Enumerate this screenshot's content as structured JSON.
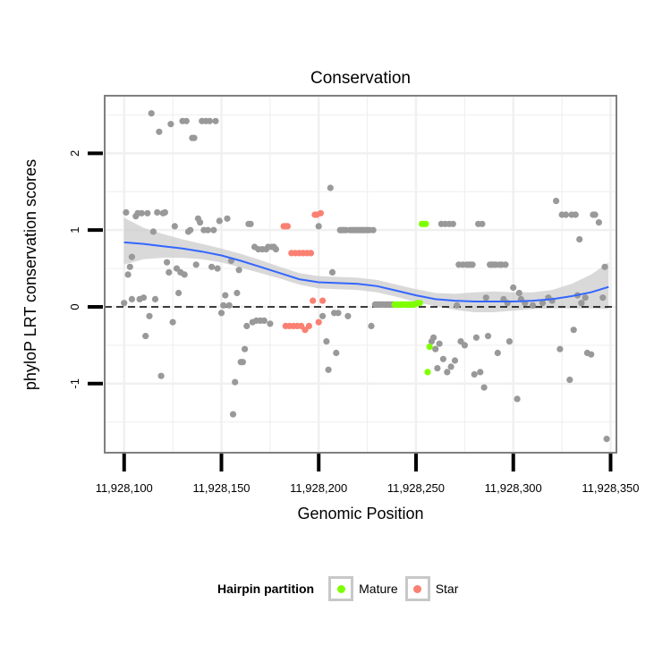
{
  "chart_data": {
    "type": "scatter",
    "title": "Conservation",
    "xlabel": "Genomic Position",
    "ylabel": "phyloP LRT conservation scores",
    "xlim": [
      11928090,
      11928353
    ],
    "ylim": [
      -1.9,
      2.75
    ],
    "x_ticks": [
      11928100,
      11928150,
      11928200,
      11928250,
      11928300,
      11928350
    ],
    "x_tick_labels": [
      "11,928,100",
      "11,928,150",
      "11,928,200",
      "11,928,250",
      "11,928,300",
      "11,928,350"
    ],
    "y_ticks": [
      -1,
      0,
      1,
      2
    ],
    "y_tick_labels": [
      "-1",
      "0",
      "1",
      "2"
    ],
    "reference_line": {
      "y": 0,
      "style": "dashed"
    },
    "colors": {
      "Other": "#999999",
      "Mature": "#7fff00",
      "Star": "#fa8072",
      "smooth": "#3366ff",
      "band": "#cccccc",
      "panel_border": "#7f7f7f",
      "grid": "#f0f0f0"
    },
    "series": [
      {
        "name": "Other",
        "points": [
          [
            11928100,
            0.05
          ],
          [
            11928101,
            1.23
          ],
          [
            11928102,
            0.42
          ],
          [
            11928103,
            0.52
          ],
          [
            11928104,
            0.65
          ],
          [
            11928104,
            0.1
          ],
          [
            11928106,
            1.18
          ],
          [
            11928107,
            1.22
          ],
          [
            11928108,
            0.1
          ],
          [
            11928109,
            1.22
          ],
          [
            11928110,
            0.12
          ],
          [
            11928111,
            -0.38
          ],
          [
            11928112,
            1.22
          ],
          [
            11928113,
            -0.12
          ],
          [
            11928114,
            2.52
          ],
          [
            11928115,
            0.98
          ],
          [
            11928116,
            0.1
          ],
          [
            11928117,
            1.23
          ],
          [
            11928118,
            2.28
          ],
          [
            11928119,
            -0.9
          ],
          [
            11928120,
            1.22
          ],
          [
            11928121,
            1.23
          ],
          [
            11928122,
            0.58
          ],
          [
            11928123,
            0.45
          ],
          [
            11928124,
            2.38
          ],
          [
            11928125,
            -0.2
          ],
          [
            11928126,
            1.05
          ],
          [
            11928127,
            0.5
          ],
          [
            11928128,
            0.18
          ],
          [
            11928129,
            0.45
          ],
          [
            11928130,
            2.42
          ],
          [
            11928131,
            0.42
          ],
          [
            11928132,
            2.42
          ],
          [
            11928133,
            0.98
          ],
          [
            11928134,
            1.0
          ],
          [
            11928135,
            2.2
          ],
          [
            11928136,
            2.2
          ],
          [
            11928137,
            0.55
          ],
          [
            11928138,
            1.15
          ],
          [
            11928139,
            1.1
          ],
          [
            11928140,
            2.42
          ],
          [
            11928141,
            1.0
          ],
          [
            11928142,
            2.42
          ],
          [
            11928143,
            1.0
          ],
          [
            11928144,
            2.42
          ],
          [
            11928145,
            0.52
          ],
          [
            11928146,
            1.0
          ],
          [
            11928147,
            2.42
          ],
          [
            11928148,
            0.5
          ],
          [
            11928149,
            1.12
          ],
          [
            11928150,
            -0.08
          ],
          [
            11928151,
            0.02
          ],
          [
            11928152,
            0.15
          ],
          [
            11928153,
            1.15
          ],
          [
            11928154,
            0.02
          ],
          [
            11928155,
            0.6
          ],
          [
            11928156,
            -1.4
          ],
          [
            11928157,
            -0.98
          ],
          [
            11928158,
            0.18
          ],
          [
            11928159,
            0.48
          ],
          [
            11928160,
            -0.72
          ],
          [
            11928161,
            -0.72
          ],
          [
            11928162,
            -0.55
          ],
          [
            11928163,
            -0.25
          ],
          [
            11928164,
            1.08
          ],
          [
            11928165,
            1.08
          ],
          [
            11928166,
            -0.2
          ],
          [
            11928167,
            0.78
          ],
          [
            11928168,
            -0.18
          ],
          [
            11928169,
            0.75
          ],
          [
            11928170,
            -0.18
          ],
          [
            11928171,
            0.75
          ],
          [
            11928172,
            -0.18
          ],
          [
            11928173,
            0.75
          ],
          [
            11928174,
            0.78
          ],
          [
            11928175,
            -0.22
          ],
          [
            11928176,
            0.78
          ],
          [
            11928177,
            0.78
          ],
          [
            11928178,
            0.75
          ],
          [
            11928200,
            1.05
          ],
          [
            11928202,
            -0.12
          ],
          [
            11928204,
            -0.45
          ],
          [
            11928205,
            -0.82
          ],
          [
            11928206,
            1.55
          ],
          [
            11928207,
            0.45
          ],
          [
            11928208,
            -0.08
          ],
          [
            11928209,
            -0.6
          ],
          [
            11928210,
            -0.08
          ],
          [
            11928211,
            1.0
          ],
          [
            11928212,
            1.0
          ],
          [
            11928213,
            1.0
          ],
          [
            11928214,
            1.0
          ],
          [
            11928215,
            -0.12
          ],
          [
            11928216,
            1.0
          ],
          [
            11928217,
            1.0
          ],
          [
            11928218,
            1.0
          ],
          [
            11928219,
            1.0
          ],
          [
            11928220,
            1.0
          ],
          [
            11928221,
            1.0
          ],
          [
            11928222,
            1.0
          ],
          [
            11928223,
            1.0
          ],
          [
            11928224,
            1.0
          ],
          [
            11928225,
            1.0
          ],
          [
            11928226,
            1.0
          ],
          [
            11928227,
            -0.25
          ],
          [
            11928228,
            1.0
          ],
          [
            11928229,
            0.03
          ],
          [
            11928230,
            0.03
          ],
          [
            11928231,
            0.03
          ],
          [
            11928232,
            0.03
          ],
          [
            11928233,
            0.03
          ],
          [
            11928234,
            0.03
          ],
          [
            11928235,
            0.03
          ],
          [
            11928236,
            0.03
          ],
          [
            11928237,
            0.03
          ],
          [
            11928238,
            0.03
          ],
          [
            11928258,
            -0.45
          ],
          [
            11928259,
            -0.4
          ],
          [
            11928260,
            -0.55
          ],
          [
            11928261,
            -0.8
          ],
          [
            11928262,
            -0.48
          ],
          [
            11928263,
            1.08
          ],
          [
            11928264,
            -0.68
          ],
          [
            11928265,
            1.08
          ],
          [
            11928266,
            -0.85
          ],
          [
            11928267,
            1.08
          ],
          [
            11928268,
            -0.78
          ],
          [
            11928269,
            1.08
          ],
          [
            11928270,
            -0.7
          ],
          [
            11928271,
            0.02
          ],
          [
            11928272,
            0.55
          ],
          [
            11928273,
            -0.45
          ],
          [
            11928274,
            0.55
          ],
          [
            11928275,
            -0.5
          ],
          [
            11928276,
            0.55
          ],
          [
            11928277,
            0.55
          ],
          [
            11928278,
            0.55
          ],
          [
            11928279,
            0.55
          ],
          [
            11928280,
            -0.88
          ],
          [
            11928281,
            -0.4
          ],
          [
            11928282,
            1.08
          ],
          [
            11928283,
            -0.85
          ],
          [
            11928284,
            1.08
          ],
          [
            11928285,
            -1.05
          ],
          [
            11928286,
            0.12
          ],
          [
            11928287,
            -0.38
          ],
          [
            11928288,
            0.55
          ],
          [
            11928289,
            0.55
          ],
          [
            11928290,
            0.55
          ],
          [
            11928291,
            0.55
          ],
          [
            11928292,
            -0.6
          ],
          [
            11928293,
            0.55
          ],
          [
            11928294,
            0.55
          ],
          [
            11928295,
            0.1
          ],
          [
            11928296,
            0.55
          ],
          [
            11928297,
            0.05
          ],
          [
            11928298,
            -0.45
          ],
          [
            11928300,
            0.25
          ],
          [
            11928302,
            -1.2
          ],
          [
            11928303,
            0.18
          ],
          [
            11928304,
            0.1
          ],
          [
            11928306,
            0.05
          ],
          [
            11928310,
            0.02
          ],
          [
            11928315,
            0.05
          ],
          [
            11928318,
            0.12
          ],
          [
            11928320,
            0.08
          ],
          [
            11928322,
            1.38
          ],
          [
            11928324,
            -0.55
          ],
          [
            11928325,
            1.2
          ],
          [
            11928327,
            1.2
          ],
          [
            11928329,
            -0.95
          ],
          [
            11928330,
            1.2
          ],
          [
            11928331,
            -0.3
          ],
          [
            11928332,
            1.2
          ],
          [
            11928333,
            0.15
          ],
          [
            11928334,
            0.88
          ],
          [
            11928335,
            0.05
          ],
          [
            11928337,
            0.12
          ],
          [
            11928338,
            -0.6
          ],
          [
            11928340,
            -0.62
          ],
          [
            11928341,
            1.2
          ],
          [
            11928342,
            1.2
          ],
          [
            11928344,
            1.1
          ],
          [
            11928346,
            0.12
          ],
          [
            11928347,
            0.52
          ],
          [
            11928348,
            -1.72
          ]
        ]
      },
      {
        "name": "Mature",
        "points": [
          [
            11928239,
            0.03
          ],
          [
            11928240,
            0.03
          ],
          [
            11928241,
            0.03
          ],
          [
            11928242,
            0.03
          ],
          [
            11928243,
            0.03
          ],
          [
            11928244,
            0.03
          ],
          [
            11928245,
            0.03
          ],
          [
            11928246,
            0.03
          ],
          [
            11928247,
            0.03
          ],
          [
            11928248,
            0.03
          ],
          [
            11928249,
            0.03
          ],
          [
            11928250,
            0.04
          ],
          [
            11928251,
            0.05
          ],
          [
            11928252,
            0.05
          ],
          [
            11928253,
            1.08
          ],
          [
            11928254,
            1.08
          ],
          [
            11928255,
            1.08
          ],
          [
            11928256,
            -0.85
          ],
          [
            11928257,
            -0.52
          ]
        ]
      },
      {
        "name": "Star",
        "points": [
          [
            11928182,
            1.05
          ],
          [
            11928183,
            1.05
          ],
          [
            11928184,
            1.05
          ],
          [
            11928183,
            -0.25
          ],
          [
            11928185,
            -0.25
          ],
          [
            11928186,
            0.7
          ],
          [
            11928187,
            -0.25
          ],
          [
            11928188,
            0.7
          ],
          [
            11928189,
            -0.25
          ],
          [
            11928190,
            0.7
          ],
          [
            11928191,
            -0.25
          ],
          [
            11928192,
            0.7
          ],
          [
            11928193,
            -0.3
          ],
          [
            11928194,
            0.7
          ],
          [
            11928195,
            -0.25
          ],
          [
            11928196,
            0.7
          ],
          [
            11928197,
            0.08
          ],
          [
            11928198,
            1.2
          ],
          [
            11928199,
            1.2
          ],
          [
            11928200,
            -0.2
          ],
          [
            11928201,
            1.22
          ],
          [
            11928202,
            0.08
          ]
        ]
      }
    ],
    "smooth": {
      "x": [
        11928100,
        11928110,
        11928120,
        11928130,
        11928140,
        11928150,
        11928160,
        11928170,
        11928180,
        11928190,
        11928200,
        11928210,
        11928220,
        11928230,
        11928240,
        11928250,
        11928260,
        11928270,
        11928280,
        11928290,
        11928300,
        11928310,
        11928320,
        11928330,
        11928340,
        11928349
      ],
      "y": [
        0.84,
        0.82,
        0.79,
        0.76,
        0.72,
        0.67,
        0.6,
        0.52,
        0.44,
        0.36,
        0.32,
        0.31,
        0.3,
        0.27,
        0.21,
        0.15,
        0.1,
        0.08,
        0.07,
        0.07,
        0.07,
        0.08,
        0.1,
        0.14,
        0.19,
        0.26
      ],
      "lower": [
        0.55,
        0.62,
        0.64,
        0.64,
        0.62,
        0.58,
        0.51,
        0.44,
        0.37,
        0.29,
        0.24,
        0.23,
        0.22,
        0.19,
        0.13,
        0.06,
        0.01,
        -0.04,
        -0.07,
        -0.07,
        -0.05,
        -0.03,
        -0.02,
        -0.02,
        -0.02,
        -0.03
      ],
      "upper": [
        1.16,
        1.03,
        0.95,
        0.88,
        0.82,
        0.76,
        0.69,
        0.61,
        0.52,
        0.44,
        0.4,
        0.39,
        0.38,
        0.35,
        0.29,
        0.23,
        0.18,
        0.17,
        0.19,
        0.2,
        0.19,
        0.19,
        0.22,
        0.3,
        0.42,
        0.58
      ]
    },
    "legend": {
      "title": "Hairpin partition",
      "placement": "bottom",
      "entries": [
        {
          "label": "Mature",
          "color": "#7fff00"
        },
        {
          "label": "Star",
          "color": "#fa8072"
        }
      ]
    }
  }
}
